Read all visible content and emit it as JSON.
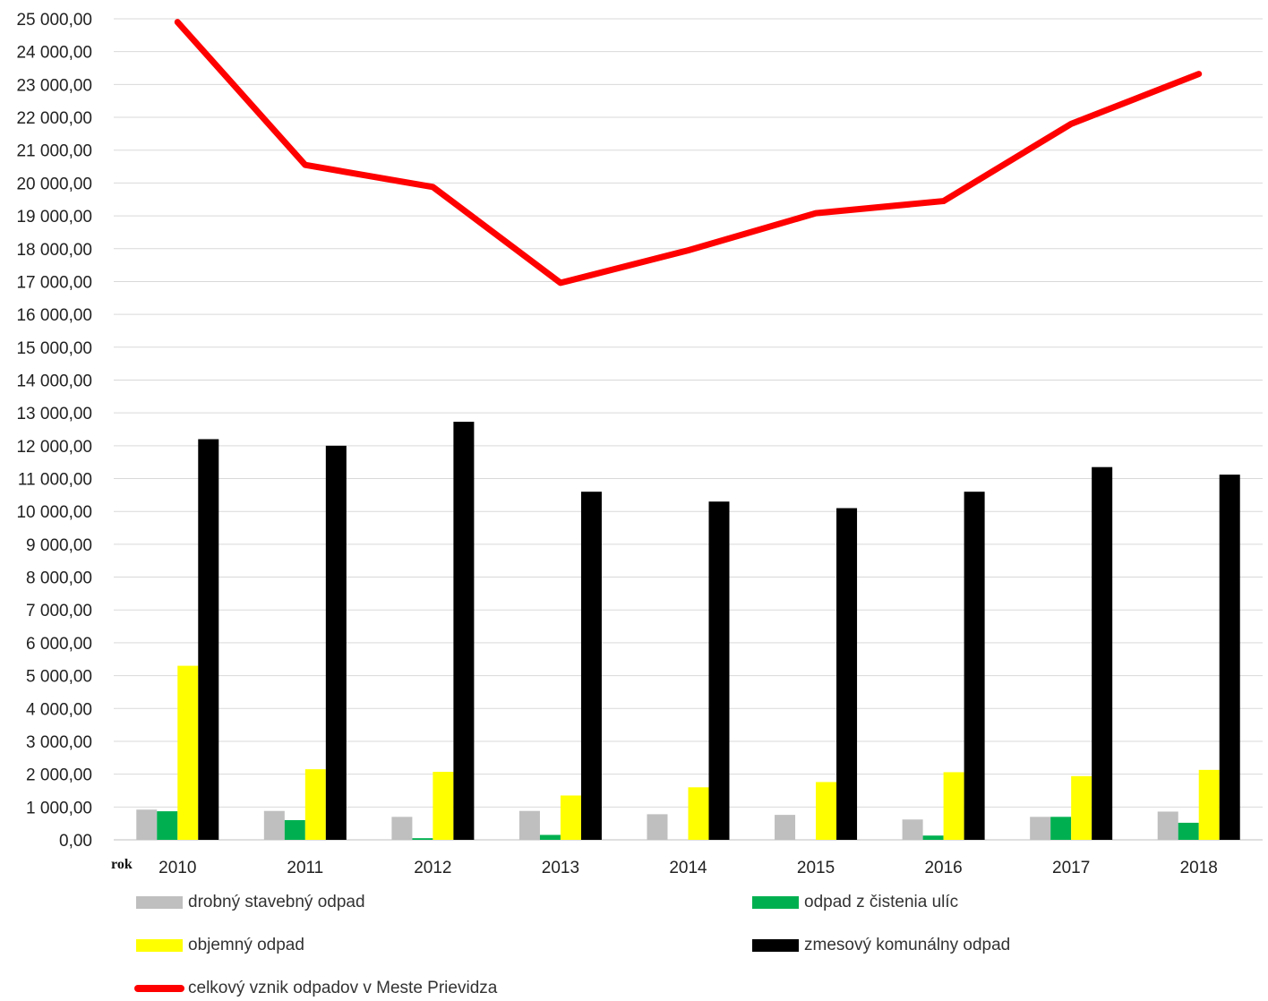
{
  "chart_data": {
    "type": "bar",
    "title": "",
    "xlabel": "rok",
    "ylabel": "",
    "ylim": [
      0,
      25000
    ],
    "ytick_step": 1000,
    "ytick_labels": [
      "0,00",
      "1 000,00",
      "2 000,00",
      "3 000,00",
      "4 000,00",
      "5 000,00",
      "6 000,00",
      "7 000,00",
      "8 000,00",
      "9 000,00",
      "10 000,00",
      "11 000,00",
      "12 000,00",
      "13 000,00",
      "14 000,00",
      "15 000,00",
      "16 000,00",
      "17 000,00",
      "18 000,00",
      "19 000,00",
      "20 000,00",
      "21 000,00",
      "22 000,00",
      "23 000,00",
      "24 000,00",
      "25 000,00"
    ],
    "categories": [
      "2010",
      "2011",
      "2012",
      "2013",
      "2014",
      "2015",
      "2016",
      "2017",
      "2018"
    ],
    "grid": "horizontal",
    "legend_position": "bottom",
    "series": [
      {
        "name": "drobný stavebný odpad",
        "kind": "bar",
        "color": "#bfbfbf",
        "values": [
          920,
          880,
          700,
          880,
          780,
          760,
          620,
          700,
          860
        ]
      },
      {
        "name": "odpad z čistenia ulíc",
        "kind": "bar",
        "color": "#00b050",
        "values": [
          870,
          600,
          50,
          150,
          0,
          0,
          130,
          700,
          520
        ]
      },
      {
        "name": "objemný odpad",
        "kind": "bar",
        "color": "#ffff00",
        "values": [
          5300,
          2150,
          2070,
          1350,
          1600,
          1760,
          2060,
          1940,
          2130
        ]
      },
      {
        "name": "zmesový komunálny odpad",
        "kind": "bar",
        "color": "#000000",
        "values": [
          12200,
          12000,
          12730,
          10600,
          10300,
          10100,
          10600,
          11350,
          11120
        ]
      },
      {
        "name": "celkový vznik odpadov v Meste Prievidza",
        "kind": "line",
        "color": "#ff0000",
        "values": [
          24900,
          20550,
          19880,
          16960,
          17950,
          19080,
          19450,
          21800,
          23320
        ]
      }
    ]
  }
}
